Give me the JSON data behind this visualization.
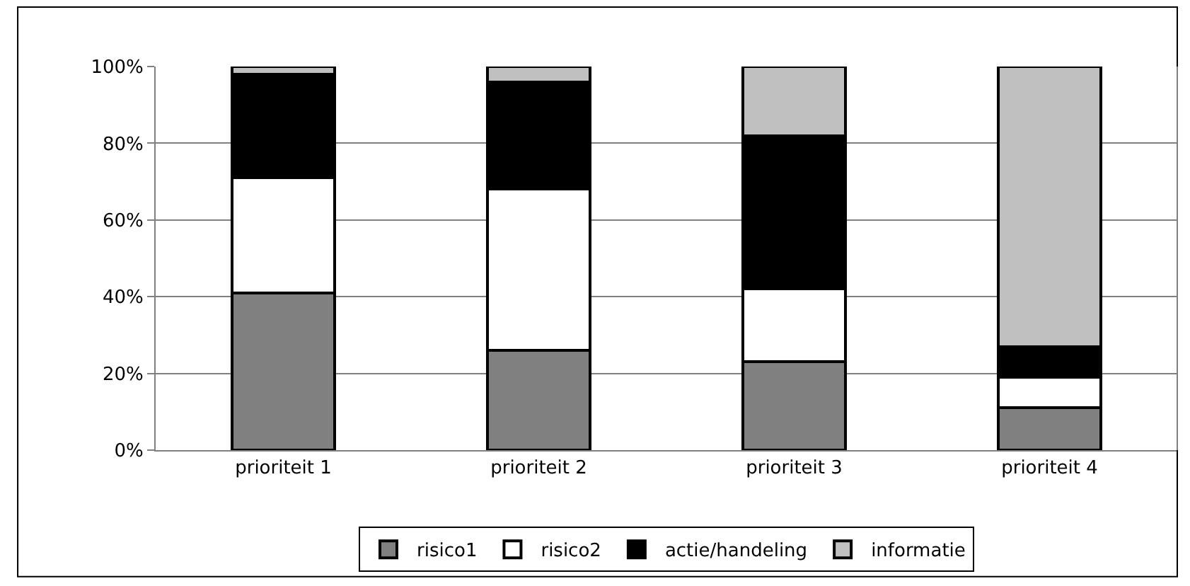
{
  "chart_data": {
    "type": "bar",
    "stacked": true,
    "categories": [
      "prioriteit 1",
      "prioriteit 2",
      "prioriteit 3",
      "prioriteit 4"
    ],
    "series": [
      {
        "name": "risico1",
        "color": "#808080",
        "values": [
          41,
          26,
          23,
          11
        ]
      },
      {
        "name": "risico2",
        "color": "#ffffff",
        "values": [
          30,
          42,
          19,
          8
        ]
      },
      {
        "name": "actie/handeling",
        "color": "#000000",
        "values": [
          27,
          28,
          40,
          8
        ]
      },
      {
        "name": "informatie",
        "color": "#c0c0c0",
        "values": [
          2,
          4,
          18,
          73
        ]
      }
    ],
    "ylim": [
      0,
      100
    ],
    "yticks": [
      {
        "value": 0,
        "label": "0%"
      },
      {
        "value": 20,
        "label": "20%"
      },
      {
        "value": 40,
        "label": "40%"
      },
      {
        "value": 60,
        "label": "60%"
      },
      {
        "value": 80,
        "label": "80%"
      },
      {
        "value": 100,
        "label": "100%"
      }
    ],
    "grid": "y",
    "legend": "bottom"
  }
}
